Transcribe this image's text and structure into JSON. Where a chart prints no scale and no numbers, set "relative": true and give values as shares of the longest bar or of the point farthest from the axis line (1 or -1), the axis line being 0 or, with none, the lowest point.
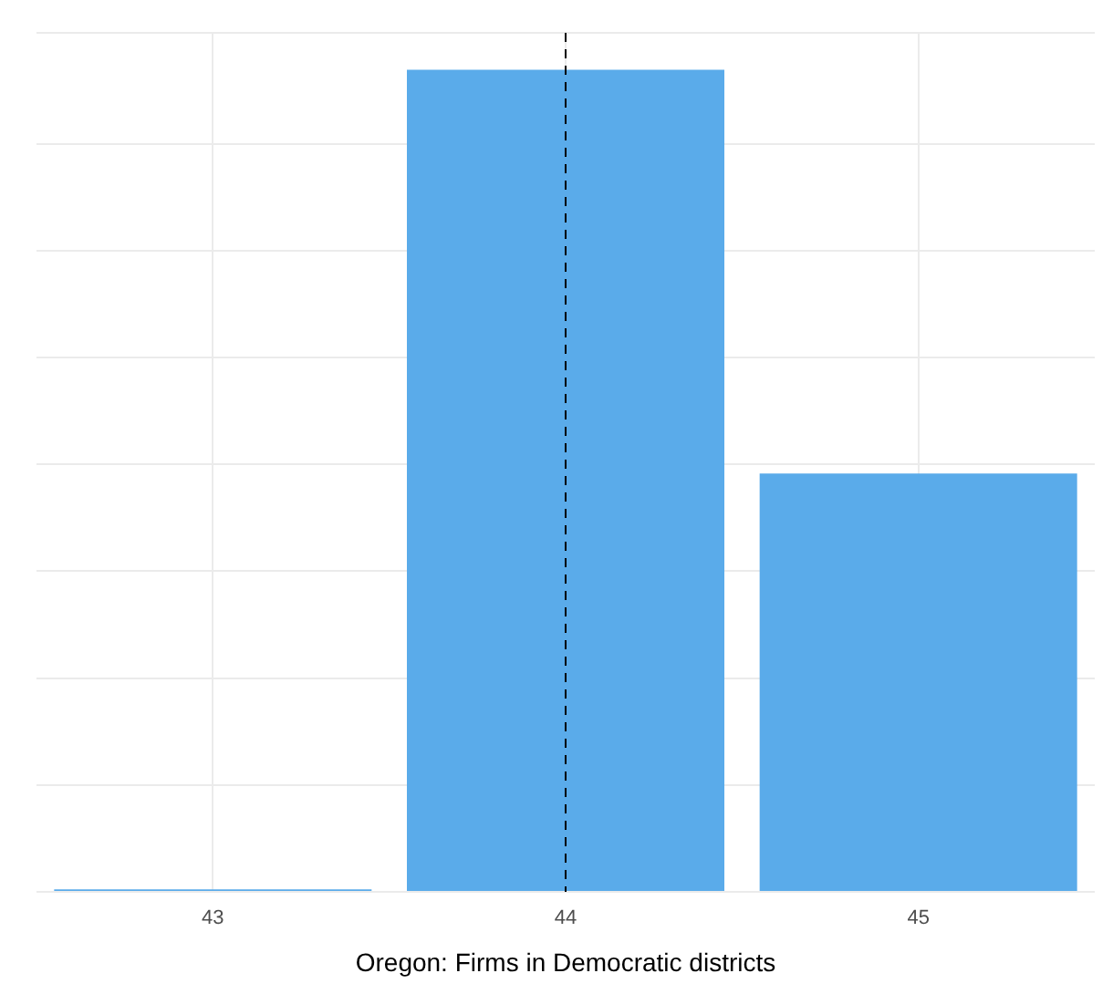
{
  "chart_data": {
    "type": "bar",
    "xlabel": "Oregon: Firms in Democratic districts",
    "categories": [
      "43",
      "44",
      "45"
    ],
    "values": [
      0.003,
      1,
      0.509
    ],
    "color": "#5aabea",
    "relative": true,
    "grid": true,
    "tick_labels": "x",
    "legend": false,
    "ref_lines": [
      {
        "axis": "x",
        "value": "44",
        "color": "#000000",
        "line_style": "dashed"
      }
    ]
  }
}
